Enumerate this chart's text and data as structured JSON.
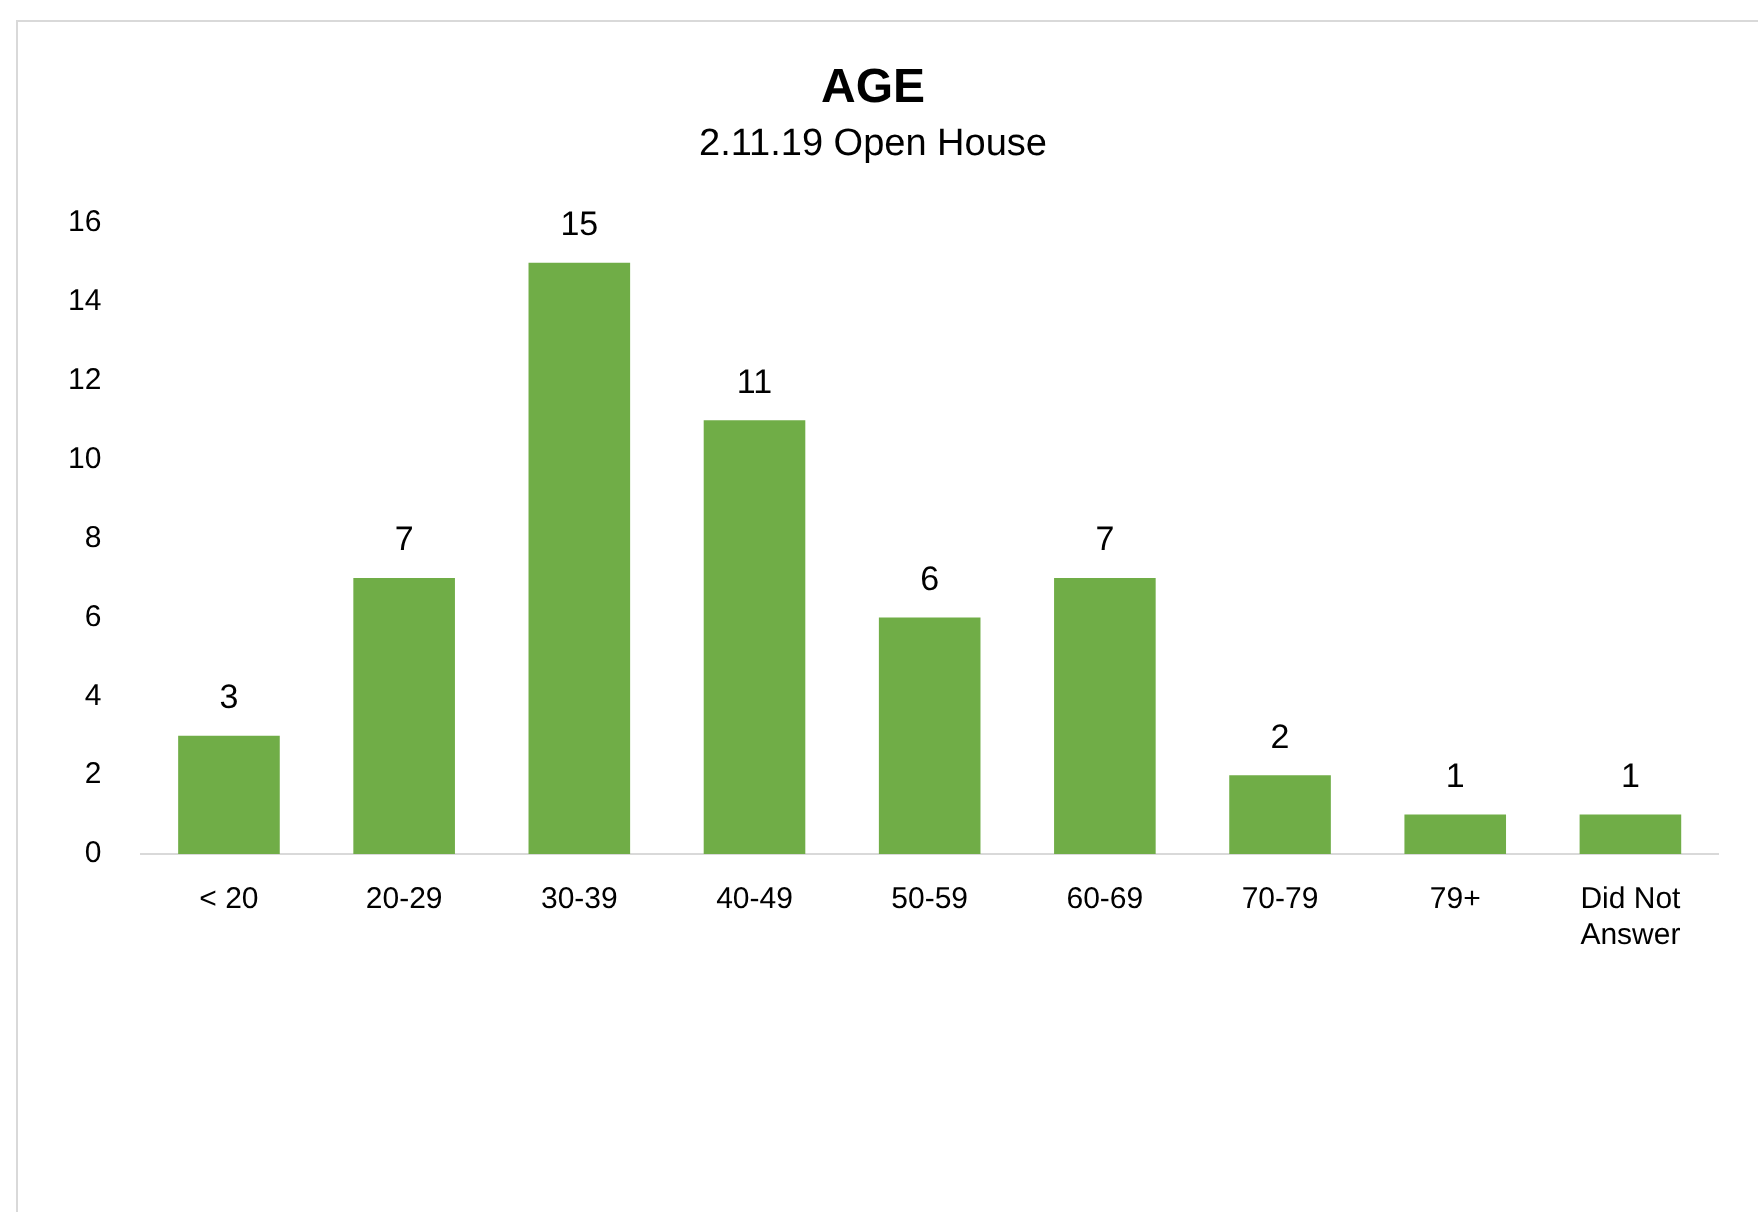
{
  "chart_data": {
    "type": "bar",
    "title": "AGE",
    "subtitle": "2.11.19 Open House",
    "categories": [
      "< 20",
      "20-29",
      "30-39",
      "40-49",
      "50-59",
      "60-69",
      "70-79",
      "79+",
      "Did Not Answer"
    ],
    "values": [
      3,
      7,
      15,
      11,
      6,
      7,
      2,
      1,
      1
    ],
    "color": "#70ad47",
    "ylim": [
      0,
      16
    ],
    "yticks": [
      0,
      2,
      4,
      6,
      8,
      10,
      12,
      14,
      16
    ],
    "grid": false,
    "legend": false,
    "data_labels": true
  }
}
